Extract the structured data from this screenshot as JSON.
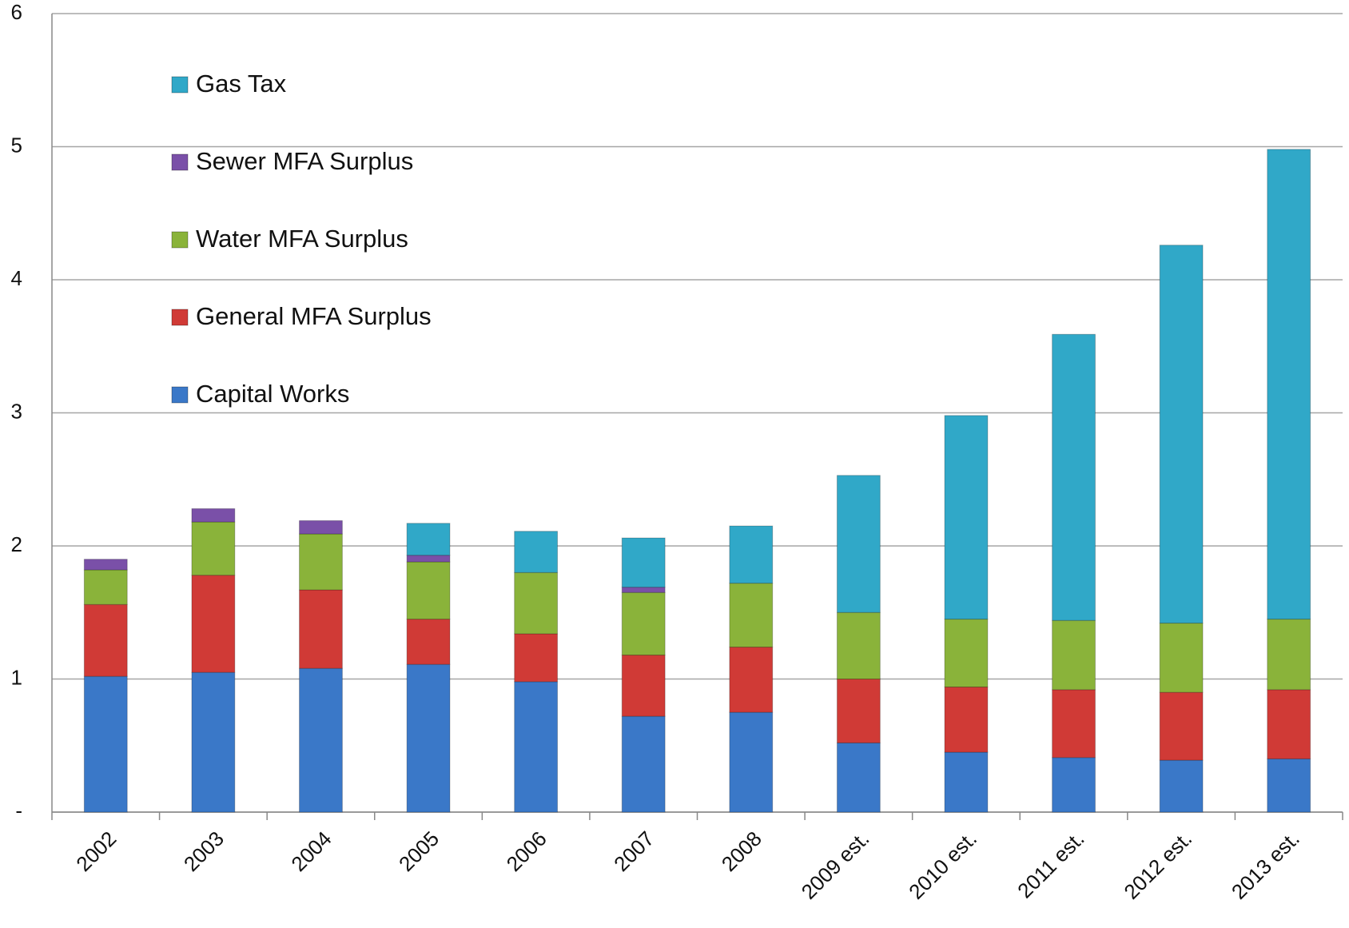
{
  "chart_data": {
    "type": "bar",
    "stacked": true,
    "categories": [
      "2002",
      "2003",
      "2004",
      "2005",
      "2006",
      "2007",
      "2008",
      "2009 est.",
      "2010 est.",
      "2011 est.",
      "2012 est.",
      "2013 est."
    ],
    "series": [
      {
        "name": "Capital Works",
        "color": "#3a78c8",
        "values": [
          1.02,
          1.05,
          1.08,
          1.11,
          0.98,
          0.72,
          0.75,
          0.52,
          0.45,
          0.41,
          0.39,
          0.4
        ]
      },
      {
        "name": "General MFA Surplus",
        "color": "#d03a36",
        "values": [
          0.54,
          0.73,
          0.59,
          0.34,
          0.36,
          0.46,
          0.49,
          0.48,
          0.49,
          0.51,
          0.51,
          0.52
        ]
      },
      {
        "name": "Water MFA Surplus",
        "color": "#8ab33a",
        "values": [
          0.26,
          0.4,
          0.42,
          0.43,
          0.46,
          0.47,
          0.48,
          0.5,
          0.51,
          0.52,
          0.52,
          0.53
        ]
      },
      {
        "name": "Sewer MFA Surplus",
        "color": "#7a50a8",
        "values": [
          0.08,
          0.1,
          0.1,
          0.05,
          0,
          0.04,
          0,
          0,
          0,
          0,
          0,
          0
        ]
      },
      {
        "name": "Gas Tax",
        "color": "#30a8c8",
        "values": [
          0,
          0,
          0,
          0.24,
          0.31,
          0.37,
          0.43,
          1.03,
          1.53,
          2.15,
          2.84,
          3.53
        ]
      }
    ],
    "ylim": [
      0,
      6
    ],
    "yticks": [
      {
        "value": 0,
        "label": "-"
      },
      1,
      2,
      3,
      4,
      5,
      6
    ],
    "grid": true,
    "legend": "upper left"
  }
}
